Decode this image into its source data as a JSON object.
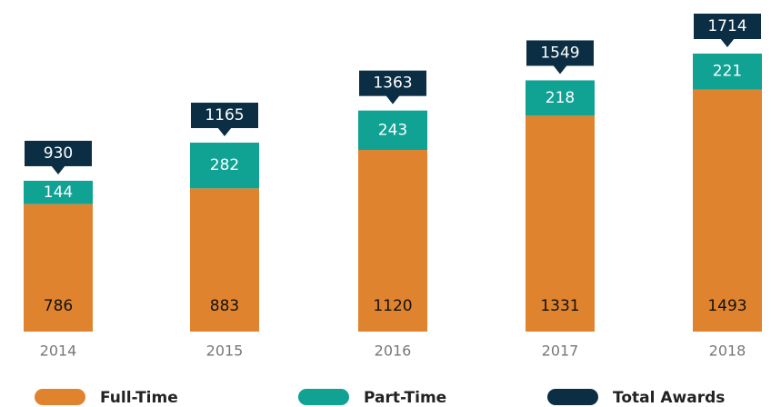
{
  "chart_data": {
    "type": "stacked_bar",
    "categories": [
      "2014",
      "2015",
      "2016",
      "2017",
      "2018"
    ],
    "series": [
      {
        "name": "Full-Time",
        "color": "#e0832e",
        "values": [
          786,
          883,
          1120,
          1331,
          1493
        ]
      },
      {
        "name": "Part-Time",
        "color": "#10a293",
        "values": [
          144,
          282,
          243,
          218,
          221
        ]
      }
    ],
    "totals": {
      "name": "Total Awards",
      "color": "#0b2e44",
      "values": [
        930,
        1165,
        1363,
        1549,
        1714
      ]
    }
  }
}
